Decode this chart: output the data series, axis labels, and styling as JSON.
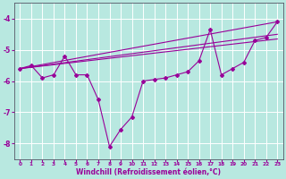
{
  "xlabel": "Windchill (Refroidissement éolien,°C)",
  "background_color": "#b8e8e0",
  "grid_color": "#ffffff",
  "line_color": "#990099",
  "xlim": [
    -0.5,
    23.5
  ],
  "ylim": [
    -8.5,
    -3.5
  ],
  "xticks": [
    0,
    1,
    2,
    3,
    4,
    5,
    6,
    7,
    8,
    9,
    10,
    11,
    12,
    13,
    14,
    15,
    16,
    17,
    18,
    19,
    20,
    21,
    22,
    23
  ],
  "yticks": [
    -8,
    -7,
    -6,
    -5,
    -4
  ],
  "curve_x": [
    0,
    1,
    2,
    3,
    4,
    5,
    6,
    7,
    8,
    9,
    10,
    11,
    12,
    13,
    14,
    15,
    16,
    17,
    18,
    19,
    20,
    21,
    22,
    23
  ],
  "curve_y": [
    -5.6,
    -5.5,
    -5.9,
    -5.8,
    -5.2,
    -5.8,
    -5.8,
    -6.6,
    -8.1,
    -7.55,
    -7.15,
    -6.0,
    -5.95,
    -5.9,
    -5.8,
    -5.7,
    -5.35,
    -4.35,
    -5.8,
    -5.6,
    -5.4,
    -4.7,
    -4.6,
    -4.1
  ],
  "trend_lines": [
    {
      "x": [
        0,
        23
      ],
      "y": [
        -5.6,
        -4.1
      ]
    },
    {
      "x": [
        0,
        23
      ],
      "y": [
        -5.6,
        -4.5
      ]
    },
    {
      "x": [
        0,
        23
      ],
      "y": [
        -5.6,
        -4.65
      ]
    }
  ]
}
